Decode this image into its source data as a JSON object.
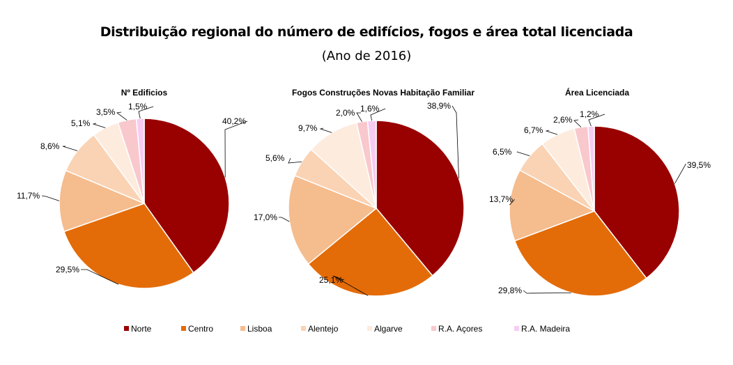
{
  "title": "Distribuição regional do número de edifícios, fogos e área total licenciada",
  "subtitle": "(Ano de 2016)",
  "legend": [
    {
      "name": "Norte",
      "color": "#990000"
    },
    {
      "name": "Centro",
      "color": "#E36C09"
    },
    {
      "name": "Lisboa",
      "color": "#F5BC8E"
    },
    {
      "name": "Alentejo",
      "color": "#FAD3B4"
    },
    {
      "name": "Algarve",
      "color": "#FDEBDE"
    },
    {
      "name": "R.A. Açores",
      "color": "#F8C8CD"
    },
    {
      "name": "R.A. Madeira",
      "color": "#F6CCF2"
    }
  ],
  "chart_data": [
    {
      "type": "pie",
      "title": "Nº Edificios",
      "categories": [
        "Norte",
        "Centro",
        "Lisboa",
        "Alentejo",
        "Algarve",
        "R.A. Açores",
        "R.A. Madeira"
      ],
      "values": [
        40.2,
        29.5,
        11.7,
        8.6,
        5.1,
        3.5,
        1.5
      ],
      "labels": [
        "40,2%",
        "29,5%",
        "11,7%",
        "8,6%",
        "5,1%",
        "3,5%",
        "1,5%"
      ]
    },
    {
      "type": "pie",
      "title": "Fogos Construções Novas Habitação Familiar",
      "categories": [
        "Norte",
        "Centro",
        "Lisboa",
        "Alentejo",
        "Algarve",
        "R.A. Açores",
        "R.A. Madeira"
      ],
      "values": [
        38.9,
        25.1,
        17.0,
        5.6,
        9.7,
        2.0,
        1.6
      ],
      "labels": [
        "38,9%",
        "25,1%",
        "17,0%",
        "5,6%",
        "9,7%",
        "2,0%",
        "1,6%"
      ]
    },
    {
      "type": "pie",
      "title": "Área Licenciada",
      "categories": [
        "Norte",
        "Centro",
        "Lisboa",
        "Alentejo",
        "Algarve",
        "R.A. Açores",
        "R.A. Madeira"
      ],
      "values": [
        39.5,
        29.8,
        13.7,
        6.5,
        6.7,
        2.6,
        1.2
      ],
      "labels": [
        "39,5%",
        "29,8%",
        "13,7%",
        "6,5%",
        "6,7%",
        "2,6%",
        "1,2%"
      ]
    }
  ]
}
